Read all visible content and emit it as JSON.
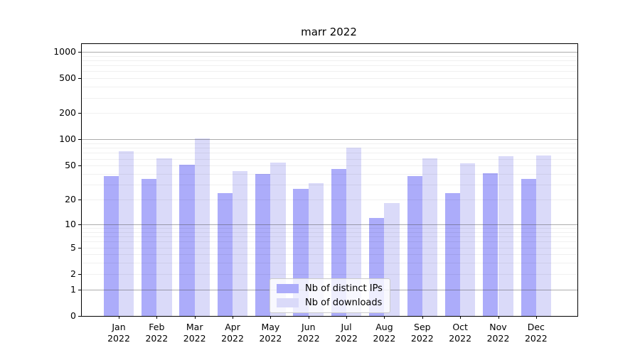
{
  "title": "marr 2022",
  "colors": {
    "ips_bar": "#acacfa",
    "downloads_bar": "#dadaf9",
    "grid_major": "rgba(70,70,70,0.45)",
    "grid_minor": "rgba(0,0,0,0.06)",
    "spine": "#000000",
    "legend_border": "#cccccc"
  },
  "legend": {
    "items": [
      {
        "label": "Nb of distinct IPs",
        "series": "ips_bar"
      },
      {
        "label": "Nb of downloads",
        "series": "downloads_bar"
      }
    ]
  },
  "chart_data": {
    "type": "bar",
    "title": "marr 2022",
    "categories": [
      "Jan 2022",
      "Feb 2022",
      "Mar 2022",
      "Apr 2022",
      "May 2022",
      "Jun 2022",
      "Jul 2022",
      "Aug 2022",
      "Sep 2022",
      "Oct 2022",
      "Nov 2022",
      "Dec 2022"
    ],
    "series": [
      {
        "name": "Nb of distinct IPs",
        "values": [
          38,
          35,
          51,
          24,
          40,
          27,
          46,
          12,
          38,
          24,
          41,
          35
        ]
      },
      {
        "name": "Nb of downloads",
        "values": [
          73,
          61,
          102,
          43,
          54,
          31,
          81,
          18,
          61,
          53,
          64,
          66
        ]
      }
    ],
    "xlabel": "",
    "ylabel": "",
    "yscale": "log1p",
    "yticks": [
      0,
      1,
      2,
      5,
      10,
      20,
      50,
      100,
      200,
      500,
      1000
    ],
    "major_gridlines": [
      1,
      10,
      100,
      1000
    ],
    "ylim": [
      0,
      1230
    ],
    "grid": true,
    "legend_position": "lower center"
  }
}
